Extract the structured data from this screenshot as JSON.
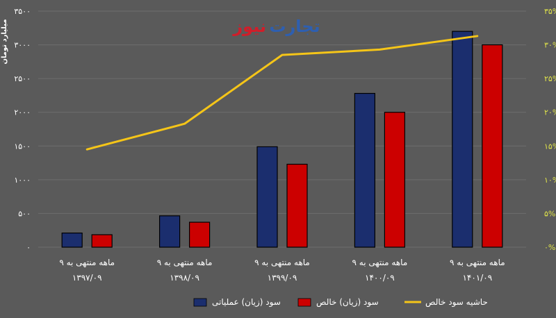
{
  "brand": {
    "part1": "تجارت",
    "part2": "نیوز",
    "color1": "#2e5fb0",
    "color2": "#d01e2a"
  },
  "chart_data": {
    "type": "bar",
    "ylabel": "میلیارد تومان",
    "ylim": [
      0,
      3500
    ],
    "y_ticks": [
      "۰",
      "۵۰۰",
      "۱۰۰۰",
      "۱۵۰۰",
      "۲۰۰۰",
      "۲۵۰۰",
      "۳۰۰۰",
      "۳۵۰۰"
    ],
    "y2lim": [
      0,
      35
    ],
    "y2_ticks": [
      "۰%",
      "۵%",
      "۱۰%",
      "۱۵%",
      "۲۰%",
      "۲۵%",
      "۳۰%",
      "۳۵%"
    ],
    "grid": true,
    "legend_position": "bottom",
    "categories": [
      [
        "۹ ماهه منتهی به",
        "۱۳۹۷/۰۹"
      ],
      [
        "۹ ماهه منتهی به",
        "۱۳۹۸/۰۹"
      ],
      [
        "۹ ماهه منتهی به",
        "۱۳۹۹/۰۹"
      ],
      [
        "۹ ماهه منتهی به",
        "۱۴۰۰/۰۹"
      ],
      [
        "۹ ماهه منتهی به",
        "۱۴۰۱/۰۹"
      ]
    ],
    "series": [
      {
        "name": "سود (زیان) عملیاتی",
        "type": "bar",
        "axis": "left",
        "color": "#1b2e6e",
        "values": [
          210,
          465,
          1490,
          2280,
          3200
        ]
      },
      {
        "name": "سود (زیان) خالص",
        "type": "bar",
        "axis": "left",
        "color": "#cc0000",
        "values": [
          185,
          370,
          1230,
          2000,
          3000
        ]
      },
      {
        "name": "حاشیه سود خالص",
        "type": "line",
        "axis": "right",
        "color": "#f5c518",
        "values": [
          14.5,
          18.3,
          28.5,
          29.3,
          31.3
        ]
      }
    ]
  }
}
